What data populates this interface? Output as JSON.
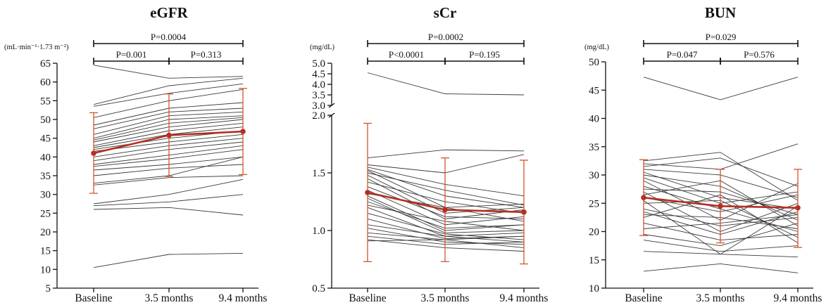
{
  "chart_data": [
    {
      "type": "line",
      "title": "eGFR",
      "unit": "(mL·min⁻¹·1.73 m⁻²)",
      "categories": [
        "Baseline",
        "3.5 months",
        "9.4 months"
      ],
      "ylim": [
        5,
        65
      ],
      "yticks": [
        5,
        10,
        15,
        20,
        25,
        30,
        35,
        40,
        45,
        50,
        55,
        60,
        65
      ],
      "mean": {
        "values": [
          41.0,
          45.8,
          46.8
        ],
        "sd_low": [
          30.3,
          34.8,
          35.3
        ],
        "sd_high": [
          51.8,
          56.8,
          58.3
        ]
      },
      "subjects": [
        [
          64.5,
          61.0,
          61.5
        ],
        [
          54.0,
          59.0,
          61.0
        ],
        [
          53.5,
          57.0,
          59.5
        ],
        [
          50.5,
          55.0,
          58.0
        ],
        [
          48.5,
          53.0,
          54.5
        ],
        [
          47.5,
          52.0,
          53.0
        ],
        [
          46.0,
          51.0,
          52.0
        ],
        [
          45.0,
          50.0,
          51.0
        ],
        [
          44.5,
          49.0,
          50.5
        ],
        [
          44.0,
          48.0,
          50.0
        ],
        [
          43.0,
          47.0,
          49.0
        ],
        [
          42.5,
          46.0,
          48.0
        ],
        [
          42.0,
          45.0,
          47.0
        ],
        [
          41.5,
          44.0,
          46.0
        ],
        [
          40.0,
          43.0,
          45.0
        ],
        [
          39.0,
          42.0,
          44.0
        ],
        [
          38.0,
          40.5,
          43.0
        ],
        [
          37.5,
          39.5,
          42.0
        ],
        [
          36.5,
          38.0,
          40.0
        ],
        [
          35.0,
          37.0,
          38.0
        ],
        [
          33.0,
          35.0,
          40.0
        ],
        [
          32.5,
          34.5,
          35.0
        ],
        [
          27.5,
          30.0,
          34.0
        ],
        [
          27.0,
          28.0,
          30.0
        ],
        [
          26.0,
          26.5,
          24.5
        ],
        [
          10.5,
          14.0,
          14.3
        ]
      ],
      "comparisons": [
        {
          "label": "P=0.0004",
          "from": 0,
          "to": 2,
          "level": "top"
        },
        {
          "label": "P=0.001",
          "from": 0,
          "to": 1,
          "level": "bottom"
        },
        {
          "label": "P=0.313",
          "from": 1,
          "to": 2,
          "level": "bottom"
        }
      ]
    },
    {
      "type": "line",
      "title": "sCr",
      "unit": "(mg/dL)",
      "categories": [
        "Baseline",
        "3.5 months",
        "9.4 months"
      ],
      "broken_axis": true,
      "ylim_lower": [
        0.5,
        2.0
      ],
      "yticks_lower": [
        0.5,
        1.0,
        1.5,
        2.0
      ],
      "ylim_upper": [
        3.0,
        5.0
      ],
      "yticks_upper": [
        3.0,
        3.5,
        4.0,
        4.5,
        5.0
      ],
      "mean": {
        "values": [
          1.33,
          1.18,
          1.16
        ],
        "sd_low": [
          0.73,
          0.73,
          0.71
        ],
        "sd_high": [
          1.93,
          1.63,
          1.61
        ]
      },
      "subjects": [
        [
          4.55,
          3.55,
          3.5
        ],
        [
          1.63,
          1.7,
          1.69
        ],
        [
          1.57,
          1.5,
          1.66
        ],
        [
          1.55,
          1.4,
          1.3
        ],
        [
          1.53,
          1.3,
          1.2
        ],
        [
          1.52,
          1.2,
          1.23
        ],
        [
          1.5,
          1.35,
          1.22
        ],
        [
          1.48,
          1.15,
          1.2
        ],
        [
          1.45,
          1.1,
          1.18
        ],
        [
          1.42,
          1.25,
          1.15
        ],
        [
          1.38,
          1.12,
          1.1
        ],
        [
          1.35,
          1.05,
          1.12
        ],
        [
          1.32,
          1.2,
          1.08
        ],
        [
          1.3,
          1.0,
          1.05
        ],
        [
          1.28,
          0.98,
          1.0
        ],
        [
          1.25,
          1.02,
          1.05
        ],
        [
          1.22,
          1.08,
          1.0
        ],
        [
          1.2,
          0.95,
          0.98
        ],
        [
          1.15,
          0.97,
          0.92
        ],
        [
          1.1,
          0.93,
          0.95
        ],
        [
          1.05,
          0.95,
          0.9
        ],
        [
          1.02,
          0.9,
          0.88
        ],
        [
          0.98,
          0.92,
          0.85
        ],
        [
          0.95,
          0.88,
          0.9
        ],
        [
          0.92,
          0.85,
          0.82
        ],
        [
          0.91,
          0.92,
          0.95
        ]
      ],
      "comparisons": [
        {
          "label": "P=0.0002",
          "from": 0,
          "to": 2,
          "level": "top"
        },
        {
          "label": "P<0.0001",
          "from": 0,
          "to": 1,
          "level": "bottom"
        },
        {
          "label": "P=0.195",
          "from": 1,
          "to": 2,
          "level": "bottom"
        }
      ]
    },
    {
      "type": "line",
      "title": "BUN",
      "unit": "(mg/dL)",
      "categories": [
        "Baseline",
        "3.5 months",
        "9.4 months"
      ],
      "ylim": [
        10,
        50
      ],
      "yticks": [
        10,
        15,
        20,
        25,
        30,
        35,
        40,
        45,
        50
      ],
      "mean": {
        "values": [
          26.0,
          24.5,
          24.2
        ],
        "sd_low": [
          19.3,
          18.0,
          17.2
        ],
        "sd_high": [
          32.7,
          31.0,
          31.0
        ]
      },
      "subjects": [
        [
          47.3,
          43.3,
          47.3
        ],
        [
          32.5,
          34.0,
          25.5
        ],
        [
          32.0,
          31.0,
          35.5
        ],
        [
          31.5,
          33.0,
          28.0
        ],
        [
          31.0,
          30.0,
          26.0
        ],
        [
          30.5,
          26.0,
          24.0
        ],
        [
          30.0,
          28.0,
          22.0
        ],
        [
          29.5,
          25.0,
          27.0
        ],
        [
          29.0,
          22.0,
          28.5
        ],
        [
          28.0,
          24.0,
          20.0
        ],
        [
          27.5,
          27.0,
          23.0
        ],
        [
          27.0,
          20.0,
          25.0
        ],
        [
          26.5,
          29.0,
          21.0
        ],
        [
          26.0,
          23.5,
          26.5
        ],
        [
          25.5,
          16.0,
          24.5
        ],
        [
          25.0,
          25.5,
          19.0
        ],
        [
          24.0,
          21.0,
          22.5
        ],
        [
          23.5,
          19.5,
          23.5
        ],
        [
          23.0,
          22.5,
          20.5
        ],
        [
          22.5,
          26.5,
          18.0
        ],
        [
          21.5,
          18.5,
          19.5
        ],
        [
          20.5,
          21.5,
          23.0
        ],
        [
          19.5,
          17.5,
          21.5
        ],
        [
          18.5,
          16.5,
          17.5
        ],
        [
          16.5,
          16.0,
          15.5
        ],
        [
          13.0,
          14.3,
          12.7
        ]
      ],
      "comparisons": [
        {
          "label": "P=0.029",
          "from": 0,
          "to": 2,
          "level": "top"
        },
        {
          "label": "P=0.047",
          "from": 0,
          "to": 1,
          "level": "bottom"
        },
        {
          "label": "P=0.576",
          "from": 1,
          "to": 2,
          "level": "bottom"
        }
      ]
    }
  ],
  "colors": {
    "subject_line": "#3a3a3a",
    "mean_line": "#b53022",
    "error_bar": "#d4542f"
  }
}
